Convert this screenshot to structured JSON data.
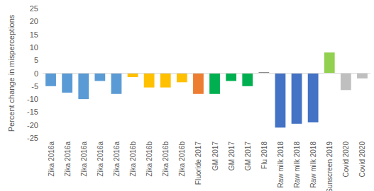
{
  "chart_data": {
    "type": "bar",
    "y_label": "Percent change in misperceptions",
    "categories": [
      "Zika 2016a",
      "Zika 2016a",
      "Zika 2016a",
      "Zika 2016a",
      "Zika 2016a",
      "Zika 2016b",
      "Zika 2016b",
      "Zika 2016b",
      "Zika 2016b",
      "Fluoride 2017",
      "GM 2017",
      "GM 2017",
      "GM 2017",
      "Flu 2018",
      "Raw milk 2018",
      "Raw milk 2018",
      "Raw milk 2018",
      "Sunscreen 2019",
      "Covid 2020",
      "Covid 2020"
    ],
    "values": [
      -5,
      -7.5,
      -10,
      -3,
      -8,
      -1.5,
      -5.5,
      -5.5,
      -3.5,
      -8,
      -8,
      -3,
      -5,
      0.3,
      -21,
      -19.5,
      -19,
      8,
      -6.5,
      -2
    ],
    "colors": [
      "#5b9bd5",
      "#5b9bd5",
      "#5b9bd5",
      "#5b9bd5",
      "#5b9bd5",
      "#ffc000",
      "#ffc000",
      "#ffc000",
      "#ffc000",
      "#ed7d31",
      "#00b050",
      "#00b050",
      "#00b050",
      "#404040",
      "#4472c4",
      "#4472c4",
      "#4472c4",
      "#92d050",
      "#bfbfbf",
      "#bfbfbf"
    ],
    "ylim": [
      -25,
      25
    ],
    "yticks": [
      -25,
      -20,
      -15,
      -10,
      -5,
      0,
      5,
      10,
      15,
      20,
      25
    ],
    "grid": false
  }
}
